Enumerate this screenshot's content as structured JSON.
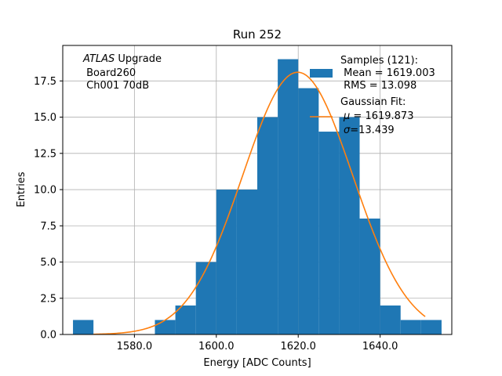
{
  "chart_data": {
    "type": "bar",
    "title": "Run 252",
    "xlabel": "Energy [ADC Counts]",
    "ylabel": "Entries",
    "xlim": [
      1562.5,
      1657.5
    ],
    "ylim": [
      0,
      19.95
    ],
    "grid": true,
    "x_ticks": [
      1580,
      1600,
      1620,
      1640
    ],
    "x_tick_labels": [
      "1580.0",
      "1600.0",
      "1620.0",
      "1640.0"
    ],
    "y_ticks": [
      0,
      2.5,
      5,
      7.5,
      10,
      12.5,
      15,
      17.5
    ],
    "y_tick_labels": [
      "0.0",
      "2.5",
      "5.0",
      "7.5",
      "10.0",
      "12.5",
      "15.0",
      "17.5"
    ],
    "bins": [
      {
        "start": 1565,
        "end": 1570,
        "count": 1
      },
      {
        "start": 1570,
        "end": 1575,
        "count": 0
      },
      {
        "start": 1575,
        "end": 1580,
        "count": 0
      },
      {
        "start": 1580,
        "end": 1585,
        "count": 0
      },
      {
        "start": 1585,
        "end": 1590,
        "count": 1
      },
      {
        "start": 1590,
        "end": 1595,
        "count": 2
      },
      {
        "start": 1595,
        "end": 1600,
        "count": 5
      },
      {
        "start": 1600,
        "end": 1605,
        "count": 10
      },
      {
        "start": 1605,
        "end": 1610,
        "count": 10
      },
      {
        "start": 1610,
        "end": 1615,
        "count": 15
      },
      {
        "start": 1615,
        "end": 1620,
        "count": 19
      },
      {
        "start": 1620,
        "end": 1625,
        "count": 17
      },
      {
        "start": 1625,
        "end": 1630,
        "count": 14
      },
      {
        "start": 1630,
        "end": 1635,
        "count": 15
      },
      {
        "start": 1635,
        "end": 1640,
        "count": 8
      },
      {
        "start": 1640,
        "end": 1645,
        "count": 2
      },
      {
        "start": 1645,
        "end": 1650,
        "count": 1
      },
      {
        "start": 1650,
        "end": 1655,
        "count": 1
      }
    ],
    "fit": {
      "mu": 1619.873,
      "sigma": 13.439,
      "amplitude": 18.1,
      "x_range": [
        1570,
        1651
      ]
    },
    "colors": {
      "bars": "#1f77b4",
      "fit": "#ff7f0e",
      "grid": "#b0b0b0"
    },
    "annotation": {
      "italic": "ATLAS",
      "rest": " Upgrade",
      "lines": [
        " Board260",
        " Ch001 70dB"
      ]
    },
    "legend": {
      "position": "top-right",
      "samples_lines": [
        "Samples (121):",
        " Mean = 1619.003",
        " RMS = 13.098"
      ],
      "fit_title": "Gaussian Fit:",
      "fit_mu_symbol": "μ",
      "fit_mu_text": " = 1619.873",
      "fit_sigma_symbol": "σ",
      "fit_sigma_text": "=13.439"
    }
  }
}
